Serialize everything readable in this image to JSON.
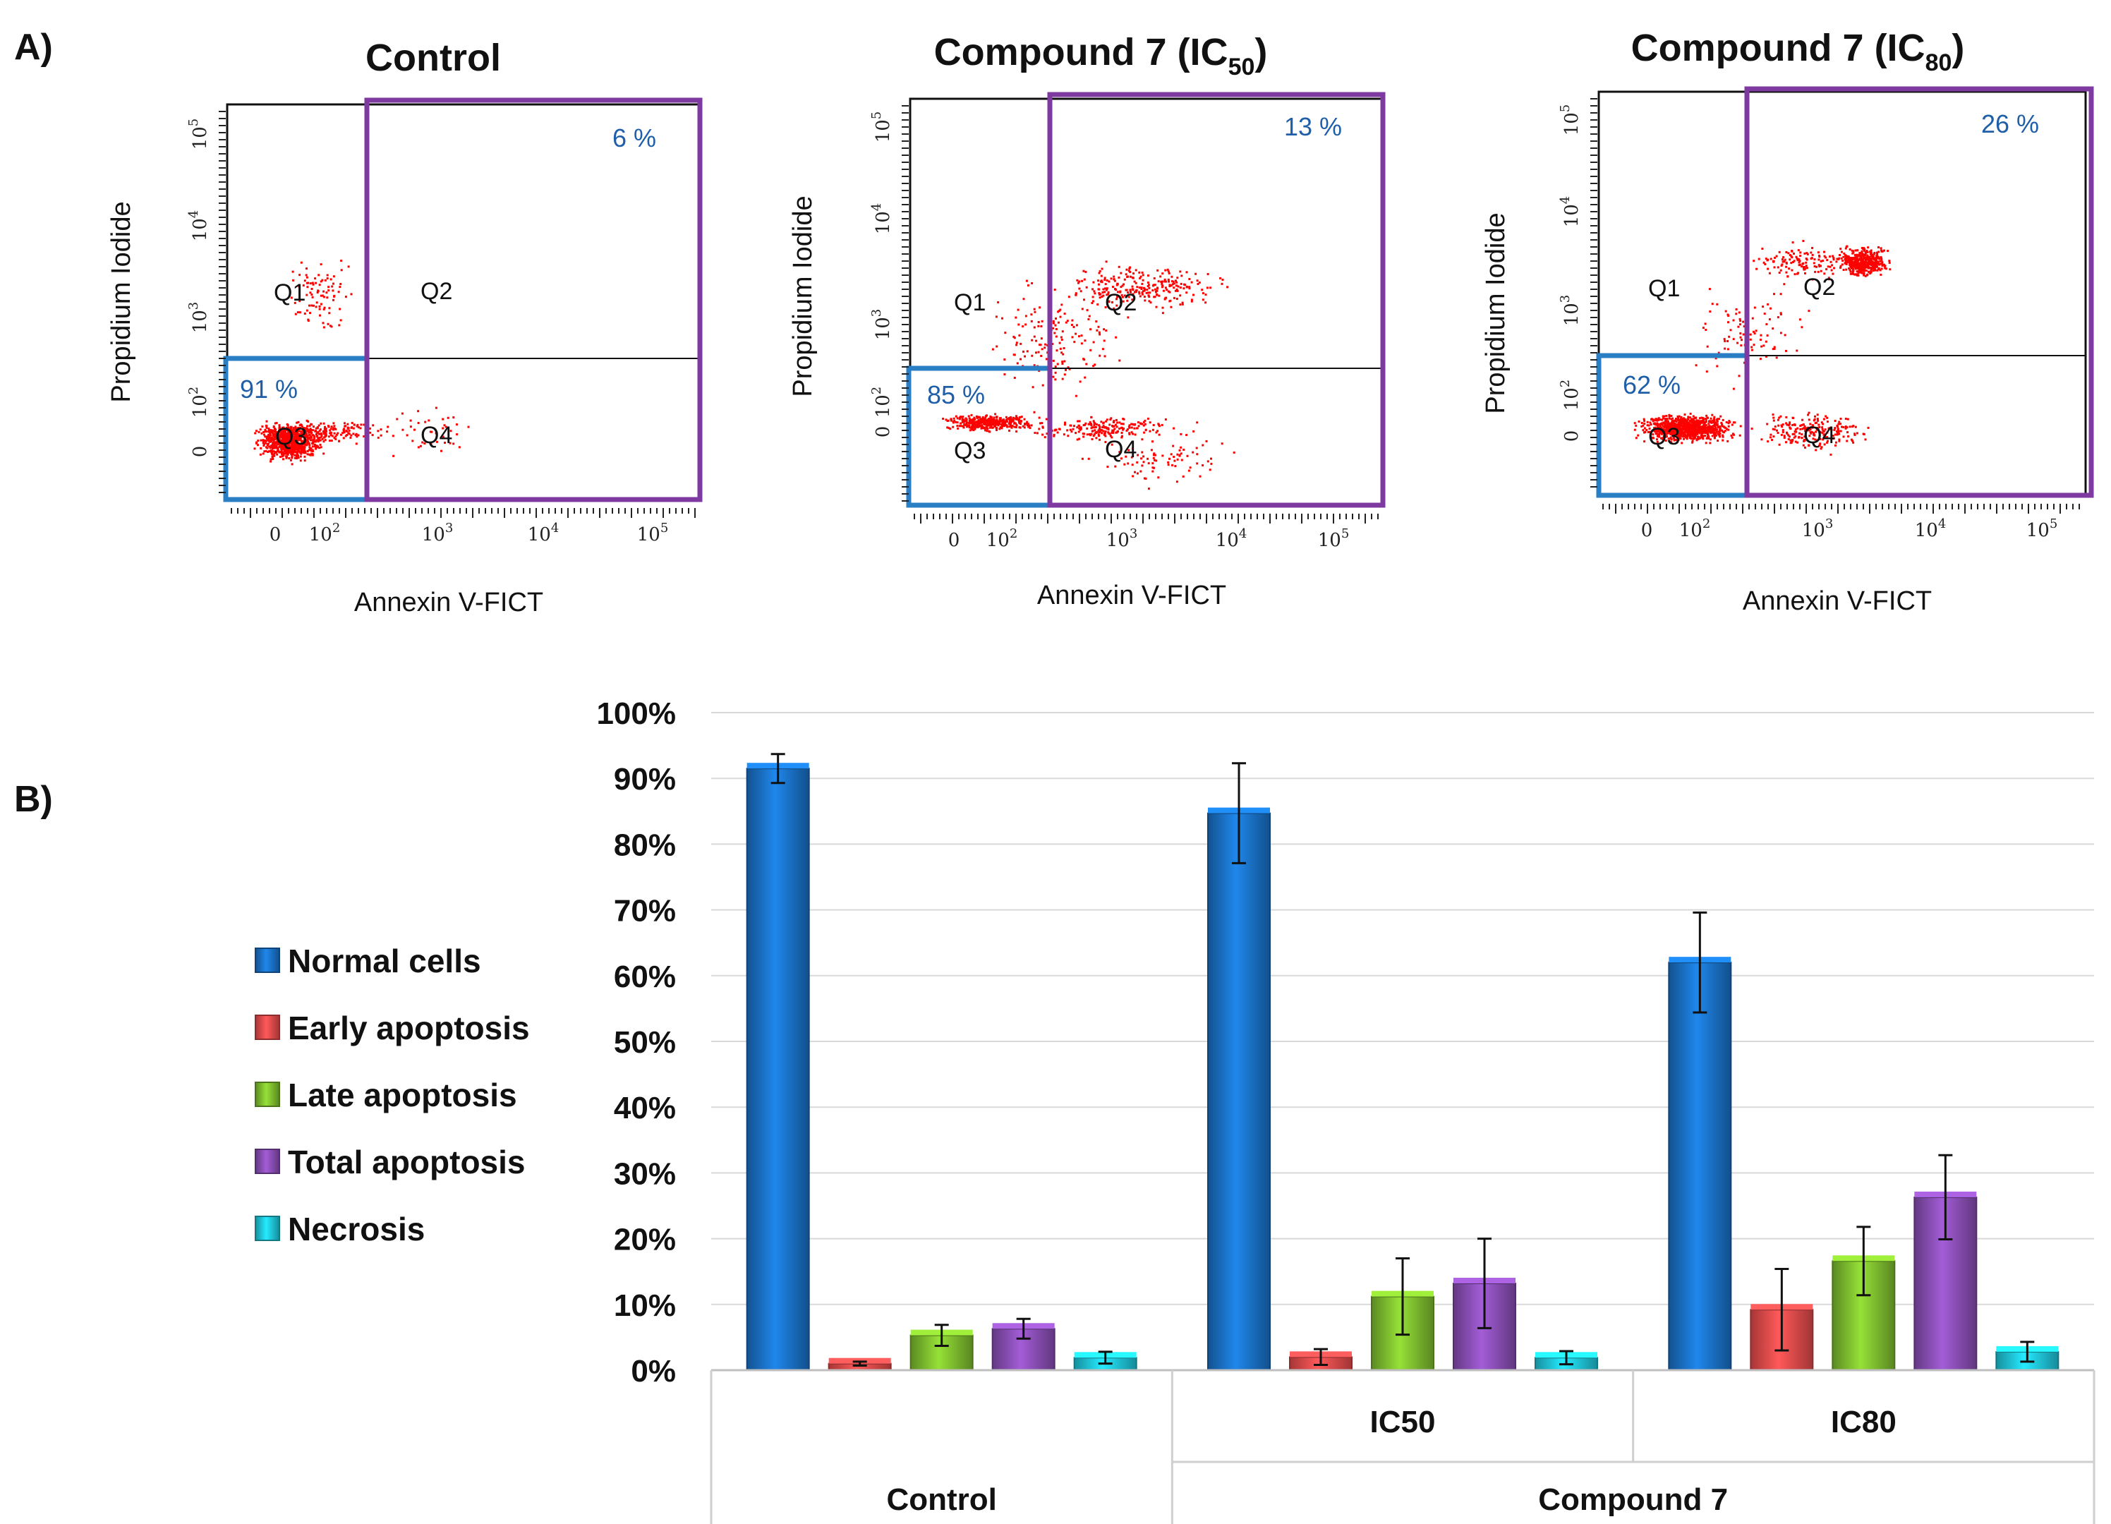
{
  "panel_labels": {
    "a": "A)",
    "b": "B)"
  },
  "colors": {
    "normal": "#1a72c8",
    "early": "#e84b4b",
    "late": "#7fbf2f",
    "total": "#8a4fb6",
    "necrosis": "#1fc7dc",
    "gate_live": "#2a7fc4",
    "gate_apoptosis": "#7e3aa0",
    "dots": "#ff0000",
    "pct_text": "#1f5fa8"
  },
  "flow_plots": [
    {
      "title": "Control",
      "title_sub": "",
      "title_suffix": "",
      "ylabel": "Propidium Iodide",
      "xlabel": "Annexin V-FICT",
      "live_pct": "91 %",
      "apoptosis_pct": "6 %",
      "quadrants": [
        "Q1",
        "Q2",
        "Q3",
        "Q4"
      ]
    },
    {
      "title": "Compound 7 (IC",
      "title_sub": "50",
      "title_suffix": ")",
      "ylabel": "Propidium Iodide",
      "xlabel": "Annexin V-FICT",
      "live_pct": "85 %",
      "apoptosis_pct": "13 %",
      "quadrants": [
        "Q1",
        "Q2",
        "Q3",
        "Q4"
      ]
    },
    {
      "title": "Compound 7  (IC",
      "title_sub": "80",
      "title_suffix": ")",
      "ylabel": "Propidium Iodide",
      "xlabel": "Annexin V-FICT",
      "live_pct": "62 %",
      "apoptosis_pct": "26 %",
      "quadrants": [
        "Q1",
        "Q2",
        "Q3",
        "Q4"
      ]
    }
  ],
  "flow_axis_ticks": {
    "x": [
      {
        "b": "0",
        "e": ""
      },
      {
        "b": "10",
        "e": "2"
      },
      {
        "b": "10",
        "e": "3"
      },
      {
        "b": "10",
        "e": "4"
      },
      {
        "b": "10",
        "e": "5"
      }
    ],
    "y": [
      {
        "b": "0",
        "e": ""
      },
      {
        "b": "10",
        "e": "2"
      },
      {
        "b": "10",
        "e": "3"
      },
      {
        "b": "10",
        "e": "4"
      },
      {
        "b": "10",
        "e": "5"
      }
    ]
  },
  "chart_data": {
    "type": "bar",
    "title": "",
    "xlabel": "",
    "ylabel": "",
    "ylim": [
      0,
      100
    ],
    "yticks": [
      0,
      10,
      20,
      30,
      40,
      50,
      60,
      70,
      80,
      90,
      100
    ],
    "ytick_labels": [
      "0%",
      "10%",
      "20%",
      "30%",
      "40%",
      "50%",
      "60%",
      "70%",
      "80%",
      "90%",
      "100%"
    ],
    "grid": true,
    "legend_position": "left",
    "categories": [
      "Control",
      "IC50",
      "IC80"
    ],
    "group_labels": [
      {
        "label": "Control",
        "spans": [
          "Control"
        ]
      },
      {
        "label": "Compound 7",
        "spans": [
          "IC50",
          "IC80"
        ]
      }
    ],
    "series": [
      {
        "name": "Normal cells",
        "color_key": "normal",
        "values": [
          91.5,
          84.7,
          62.0
        ],
        "errors": [
          2.2,
          7.6,
          7.6
        ]
      },
      {
        "name": "Early apoptosis",
        "color_key": "early",
        "values": [
          1.0,
          2.0,
          9.2
        ],
        "errors": [
          0.3,
          1.2,
          6.2
        ]
      },
      {
        "name": "Late apoptosis",
        "color_key": "late",
        "values": [
          5.3,
          11.2,
          16.6
        ],
        "errors": [
          1.6,
          5.8,
          5.2
        ]
      },
      {
        "name": "Total apoptosis",
        "color_key": "total",
        "values": [
          6.3,
          13.2,
          26.3
        ],
        "errors": [
          1.5,
          6.8,
          6.4
        ]
      },
      {
        "name": "Necrosis",
        "color_key": "necrosis",
        "values": [
          1.9,
          1.9,
          2.8
        ],
        "errors": [
          0.9,
          1.0,
          1.5
        ]
      }
    ]
  }
}
